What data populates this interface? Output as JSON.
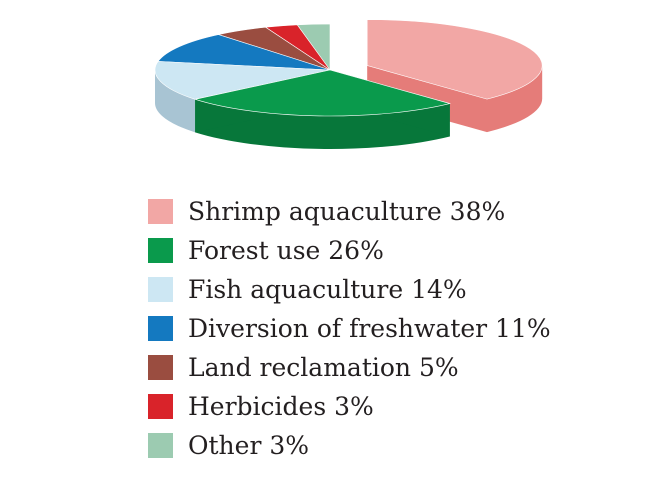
{
  "chart_data": {
    "type": "pie",
    "title": "",
    "categories": [
      "Shrimp aquaculture",
      "Forest use",
      "Fish aquaculture",
      "Diversion of freshwater",
      "Land reclamation",
      "Herbicides",
      "Other"
    ],
    "values": [
      38,
      26,
      14,
      11,
      5,
      3,
      3
    ],
    "unit": "%",
    "legend_labels": [
      "Shrimp aquaculture 38%",
      "Forest use 26%",
      "Fish aquaculture 14%",
      "Diversion of freshwater 11%",
      "Land reclamation 5%",
      "Herbicides 3%",
      "Other 3%"
    ],
    "colors": [
      "#f2a7a5",
      "#0a9a4c",
      "#cde7f3",
      "#1479c0",
      "#9a4d40",
      "#d9232a",
      "#9ccbb1"
    ],
    "side_colors": [
      "#e57c79",
      "#07773a",
      "#a8c4d3",
      "#0d5a92",
      "#733528",
      "#a8161c",
      "#76a78b"
    ],
    "exploded_slice": "Shrimp aquaculture",
    "legend_position": "bottom",
    "style": "3d"
  }
}
